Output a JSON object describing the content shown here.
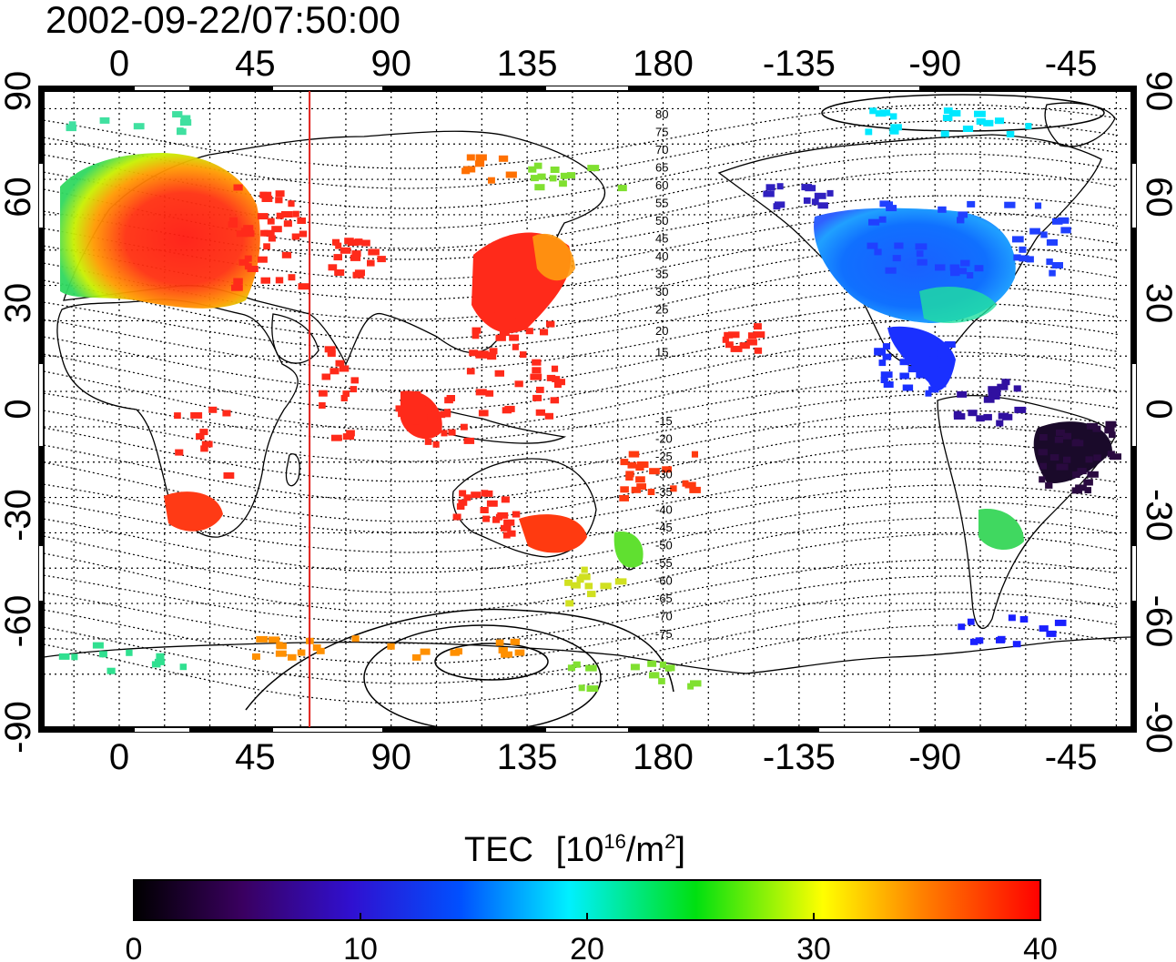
{
  "timestamp": "2002-09-22/07:50:00",
  "map": {
    "lon_ticks": [
      "0",
      "45",
      "90",
      "135",
      "180",
      "-135",
      "-90",
      "-45"
    ],
    "lat_ticks": [
      "90",
      "60",
      "30",
      "0",
      "-30",
      "-60",
      "-90"
    ],
    "marker_longitude": 63,
    "mlat_labels_north": [
      "80",
      "75",
      "70",
      "65",
      "60",
      "55",
      "50",
      "45",
      "40",
      "35",
      "30",
      "25",
      "20",
      "15"
    ],
    "mlat_labels_south": [
      "-15",
      "-20",
      "-25",
      "-30",
      "-35",
      "-40",
      "-45",
      "-50",
      "-55",
      "-60",
      "-65",
      "-70",
      "-75"
    ]
  },
  "colorbar": {
    "title": "TEC",
    "unit_prefix": "[10",
    "unit_exp": "16",
    "unit_mid": "/m",
    "unit_exp2": "2",
    "unit_suffix": "]",
    "tick_labels": [
      "0",
      "10",
      "20",
      "30",
      "40"
    ],
    "min": 0,
    "max": 40
  },
  "colors": {
    "high_tec": "#ff2a1a",
    "marker_line": "#e0201a"
  }
}
